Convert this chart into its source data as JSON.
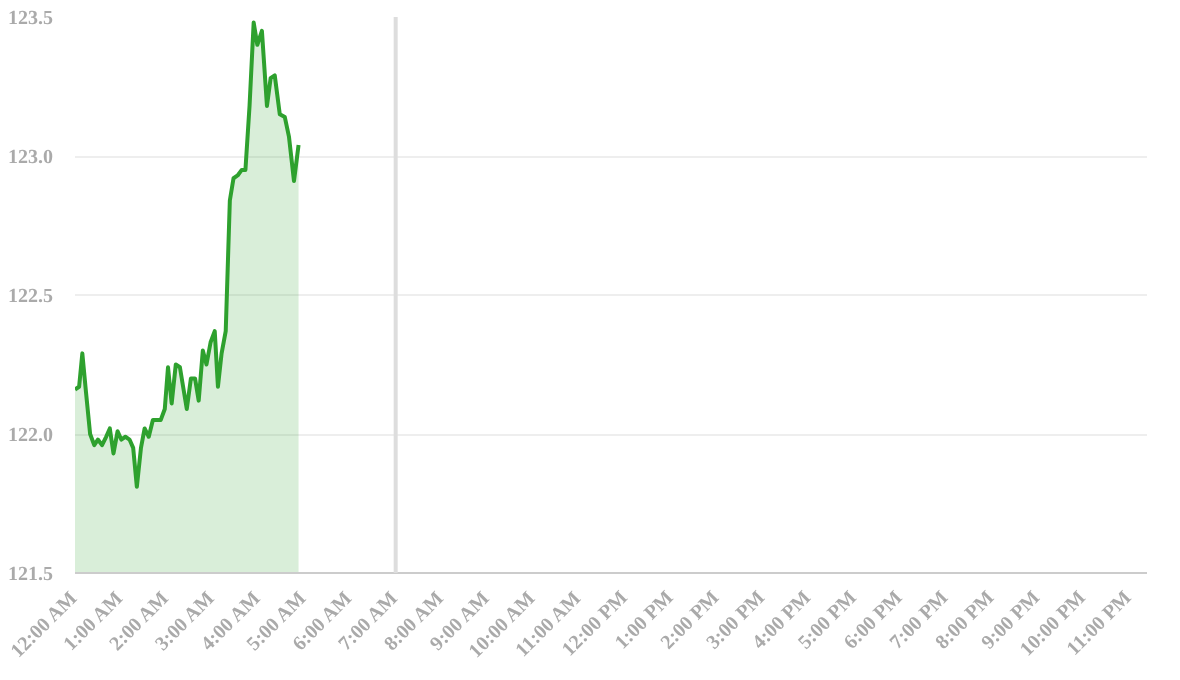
{
  "chart_data": {
    "type": "area",
    "x": [
      0,
      0.09,
      0.16,
      0.24,
      0.33,
      0.42,
      0.5,
      0.59,
      0.68,
      0.76,
      0.84,
      0.93,
      1.01,
      1.1,
      1.19,
      1.27,
      1.35,
      1.44,
      1.52,
      1.61,
      1.7,
      1.78,
      1.87,
      1.96,
      2.03,
      2.11,
      2.2,
      2.29,
      2.37,
      2.44,
      2.53,
      2.62,
      2.7,
      2.79,
      2.87,
      2.96,
      3.05,
      3.12,
      3.2,
      3.29,
      3.38,
      3.46,
      3.55,
      3.64,
      3.72,
      3.81,
      3.9,
      3.98,
      4.08,
      4.19,
      4.27,
      4.36,
      4.47,
      4.58,
      4.67,
      4.78,
      4.88
    ],
    "series": [
      {
        "color": "#2ea12e",
        "values": [
          122.16,
          122.17,
          122.29,
          122.15,
          122.0,
          121.96,
          121.98,
          121.96,
          121.99,
          122.02,
          121.93,
          122.01,
          121.98,
          121.99,
          121.98,
          121.95,
          121.81,
          121.95,
          122.02,
          121.99,
          122.05,
          122.05,
          122.05,
          122.09,
          122.24,
          122.11,
          122.25,
          122.24,
          122.16,
          122.09,
          122.2,
          122.2,
          122.12,
          122.3,
          122.25,
          122.33,
          122.37,
          122.17,
          122.29,
          122.37,
          122.84,
          122.92,
          122.93,
          122.95,
          122.95,
          123.18,
          123.48,
          123.4,
          123.45,
          123.18,
          123.28,
          123.29,
          123.15,
          123.14,
          123.07,
          122.91,
          123.04
        ]
      }
    ],
    "xlim": [
      0,
      23.4
    ],
    "xticks": [
      {
        "value": 0,
        "label": "12:00 AM"
      },
      {
        "value": 1,
        "label": "1:00 AM"
      },
      {
        "value": 2,
        "label": "2:00 AM"
      },
      {
        "value": 3,
        "label": "3:00 AM"
      },
      {
        "value": 4,
        "label": "4:00 AM"
      },
      {
        "value": 5,
        "label": "5:00 AM"
      },
      {
        "value": 6,
        "label": "6:00 AM"
      },
      {
        "value": 7,
        "label": "7:00 AM"
      },
      {
        "value": 8,
        "label": "8:00 AM"
      },
      {
        "value": 9,
        "label": "9:00 AM"
      },
      {
        "value": 10,
        "label": "10:00 AM"
      },
      {
        "value": 11,
        "label": "11:00 AM"
      },
      {
        "value": 12,
        "label": "12:00 PM"
      },
      {
        "value": 13,
        "label": "1:00 PM"
      },
      {
        "value": 14,
        "label": "2:00 PM"
      },
      {
        "value": 15,
        "label": "3:00 PM"
      },
      {
        "value": 16,
        "label": "4:00 PM"
      },
      {
        "value": 17,
        "label": "5:00 PM"
      },
      {
        "value": 18,
        "label": "6:00 PM"
      },
      {
        "value": 19,
        "label": "7:00 PM"
      },
      {
        "value": 20,
        "label": "8:00 PM"
      },
      {
        "value": 21,
        "label": "9:00 PM"
      },
      {
        "value": 22,
        "label": "10:00 PM"
      },
      {
        "value": 23,
        "label": "11:00 PM"
      }
    ],
    "ylim": [
      121.5,
      123.5
    ],
    "yticks": [
      {
        "value": 121.5,
        "label": "121.5"
      },
      {
        "value": 122,
        "label": "122.0"
      },
      {
        "value": 122.5,
        "label": "122.5"
      },
      {
        "value": 123,
        "label": "123.0"
      },
      {
        "value": 123.5,
        "label": "123.5"
      }
    ],
    "ref_lines": [
      {
        "axis": "x",
        "value": 7,
        "label": null,
        "color": "#dddddd"
      }
    ],
    "grid": "y",
    "marker": "none",
    "line_style": "solid"
  }
}
